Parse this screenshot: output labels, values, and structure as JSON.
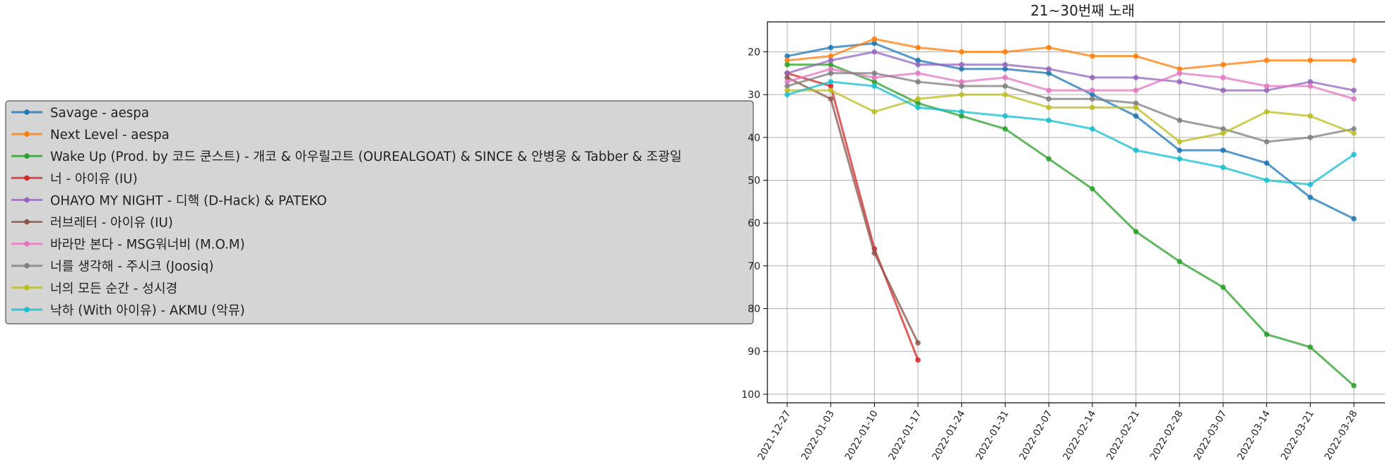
{
  "chart_data": {
    "type": "line",
    "title": "21~30번째 노래",
    "xlabel": "",
    "ylabel": "",
    "y_inverted": true,
    "ylim": [
      102,
      13
    ],
    "yticks": [
      20,
      30,
      40,
      50,
      60,
      70,
      80,
      90,
      100
    ],
    "grid": true,
    "legend_placement": "left, outside plot",
    "x": [
      "2021-12-27",
      "2022-01-03",
      "2022-01-10",
      "2022-01-17",
      "2022-01-24",
      "2022-01-31",
      "2022-02-07",
      "2022-02-14",
      "2022-02-21",
      "2022-02-28",
      "2022-03-07",
      "2022-03-14",
      "2022-03-21",
      "2022-03-28"
    ],
    "series": [
      {
        "name": "Savage - aespa",
        "color": "#1f77b4",
        "values": [
          21,
          19,
          18,
          22,
          24,
          24,
          25,
          30,
          35,
          43,
          43,
          46,
          54,
          59
        ]
      },
      {
        "name": "Next Level - aespa",
        "color": "#ff7f0e",
        "values": [
          22,
          21,
          17,
          19,
          20,
          20,
          19,
          21,
          21,
          24,
          23,
          22,
          22,
          22
        ]
      },
      {
        "name": "Wake Up (Prod. by 코드 쿤스트) - 개코 & 아우릴고트 (OUREALGOAT) & SINCE & 안병웅 & Tabber & 조광일",
        "color": "#2ca02c",
        "values": [
          23,
          23,
          27,
          32,
          35,
          38,
          45,
          52,
          62,
          69,
          75,
          86,
          89,
          98
        ]
      },
      {
        "name": "너 - 아이유 (IU)",
        "color": "#d62728",
        "values": [
          25,
          28,
          66,
          92,
          null,
          null,
          null,
          null,
          null,
          null,
          null,
          null,
          null,
          null
        ]
      },
      {
        "name": "OHAYO MY NIGHT - 디핵 (D-Hack) & PATEKO",
        "color": "#9467bd",
        "values": [
          25,
          22,
          20,
          23,
          23,
          23,
          24,
          26,
          26,
          27,
          29,
          29,
          27,
          29
        ]
      },
      {
        "name": "러브레터 - 아이유 (IU)",
        "color": "#8c564b",
        "values": [
          26,
          31,
          67,
          88,
          null,
          null,
          null,
          null,
          null,
          null,
          null,
          null,
          null,
          null
        ]
      },
      {
        "name": "바라만 본다 - MSG워너비 (M.O.M)",
        "color": "#e377c2",
        "values": [
          27,
          24,
          26,
          25,
          27,
          26,
          29,
          29,
          29,
          25,
          26,
          28,
          28,
          31
        ]
      },
      {
        "name": "너를 생각해 - 주시크 (Joosiq)",
        "color": "#7f7f7f",
        "values": [
          28,
          25,
          25,
          27,
          28,
          28,
          31,
          31,
          32,
          36,
          38,
          41,
          40,
          38
        ]
      },
      {
        "name": "너의 모든 순간 - 성시경",
        "color": "#bcbd22",
        "values": [
          29,
          29,
          34,
          31,
          30,
          30,
          33,
          33,
          33,
          41,
          39,
          34,
          35,
          39
        ]
      },
      {
        "name": "낙하 (With 아이유) - AKMU (악뮤)",
        "color": "#17becf",
        "values": [
          30,
          27,
          28,
          33,
          34,
          35,
          36,
          38,
          43,
          45,
          47,
          50,
          51,
          44
        ]
      }
    ]
  }
}
